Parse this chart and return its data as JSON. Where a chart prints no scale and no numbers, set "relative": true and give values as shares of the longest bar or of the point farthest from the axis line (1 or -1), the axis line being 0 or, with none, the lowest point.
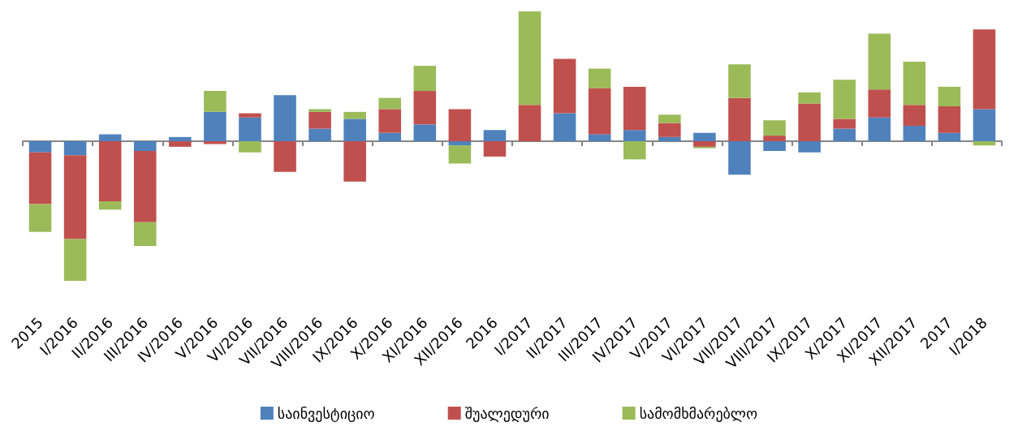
{
  "chart_data": {
    "type": "bar",
    "stacked": true,
    "relative": true,
    "legend": "bottom",
    "grid": false,
    "categories": [
      "2015",
      "I/2016",
      "II/2016",
      "III/2016",
      "IV/2016",
      "V/2016",
      "VI/2016",
      "VII/2016",
      "VIII/2016",
      "IX/2016",
      "X/2016",
      "XI/2016",
      "XII/2016",
      "2016",
      "I/2017",
      "II/2017",
      "III/2017",
      "IV/2017",
      "V/2017",
      "VI/2017",
      "VII/2017",
      "VIII/2017",
      "IX/2017",
      "X/2017",
      "XI/2017",
      "XII/2017",
      "2017",
      "I/2018"
    ],
    "series": [
      {
        "name": "საინვესტიციო",
        "color": "#4f81bd",
        "values": [
          -0.08,
          -0.1,
          0.05,
          -0.07,
          0.03,
          0.21,
          0.17,
          0.33,
          0.09,
          0.16,
          0.06,
          0.12,
          -0.03,
          0.08,
          0,
          0.2,
          0.05,
          0.08,
          0.03,
          0.06,
          -0.24,
          -0.07,
          -0.08,
          0.09,
          0.17,
          0.11,
          0.06,
          0.23
        ]
      },
      {
        "name": "შუალედური",
        "color": "#c0504d",
        "values": [
          -0.37,
          -0.6,
          -0.43,
          -0.51,
          -0.04,
          -0.02,
          0.03,
          -0.22,
          0.12,
          -0.29,
          0.17,
          0.24,
          0.23,
          -0.11,
          0.26,
          0.39,
          0.33,
          0.31,
          0.1,
          -0.04,
          0.31,
          0.04,
          0.27,
          0.07,
          0.2,
          0.15,
          0.19,
          0.57
        ]
      },
      {
        "name": "სამომხმარებლო",
        "color": "#9bbb59",
        "values": [
          -0.2,
          -0.3,
          -0.06,
          -0.17,
          0,
          0.15,
          -0.08,
          0,
          0.02,
          0.05,
          0.08,
          0.18,
          -0.13,
          0,
          0.67,
          0,
          0.14,
          -0.13,
          0.06,
          -0.01,
          0.24,
          0.11,
          0.08,
          0.28,
          0.4,
          0.31,
          0.14,
          -0.03
        ]
      }
    ]
  }
}
